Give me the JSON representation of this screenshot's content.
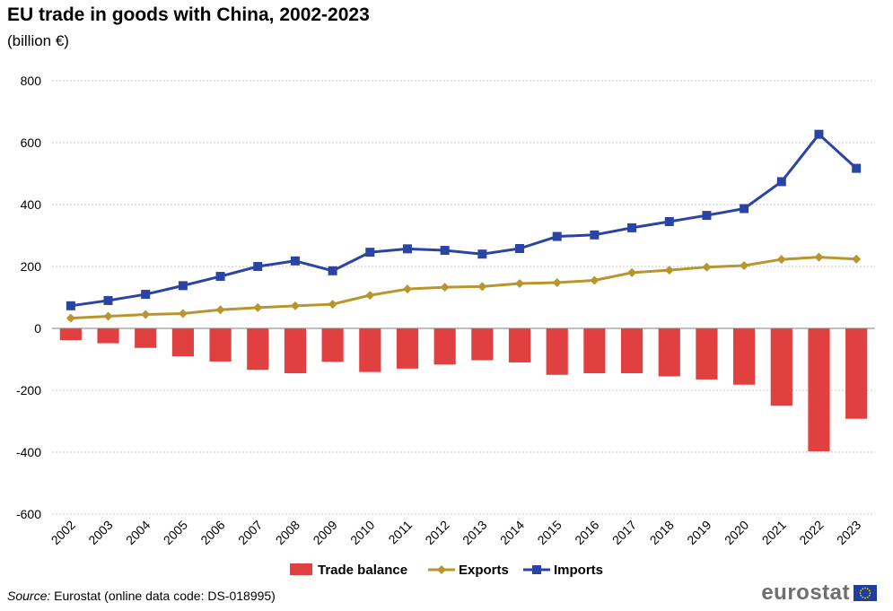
{
  "title": "EU trade in goods with China, 2002-2023",
  "subtitle": "(billion €)",
  "source_label": "Source:",
  "source_text": " Eurostat (online data code: DS-018995)",
  "logo_text": "eurostat",
  "colors": {
    "trade_balance": "#e04040",
    "exports": "#b8962e",
    "imports": "#2a44a6",
    "grid": "#c8c8c8",
    "logo_flag": "#1f3f9a",
    "logo_stars": "#f5d000"
  },
  "chart_data": {
    "type": "bar",
    "title": "EU trade in goods with China, 2002-2023",
    "subtitle": "(billion €)",
    "xlabel": "",
    "ylabel": "",
    "ylim": [
      -600,
      800
    ],
    "yticks": [
      800,
      600,
      400,
      200,
      0,
      -200,
      -400,
      -600
    ],
    "grid": true,
    "legend_position": "bottom",
    "categories": [
      "2002",
      "2003",
      "2004",
      "2005",
      "2006",
      "2007",
      "2008",
      "2009",
      "2010",
      "2011",
      "2012",
      "2013",
      "2014",
      "2015",
      "2016",
      "2017",
      "2018",
      "2019",
      "2020",
      "2021",
      "2022",
      "2023"
    ],
    "series": [
      {
        "name": "Trade balance",
        "type": "bar",
        "values": [
          -38,
          -48,
          -63,
          -90,
          -107,
          -134,
          -145,
          -108,
          -141,
          -130,
          -117,
          -103,
          -110,
          -150,
          -145,
          -145,
          -155,
          -165,
          -182,
          -250,
          -397,
          -292
        ]
      },
      {
        "name": "Exports",
        "type": "line",
        "marker": "diamond",
        "values": [
          33,
          39,
          45,
          48,
          60,
          67,
          73,
          78,
          107,
          127,
          133,
          135,
          145,
          148,
          155,
          180,
          188,
          198,
          203,
          223,
          230,
          224
        ]
      },
      {
        "name": "Imports",
        "type": "line",
        "marker": "square",
        "values": [
          73,
          90,
          110,
          138,
          168,
          200,
          218,
          186,
          246,
          257,
          252,
          240,
          258,
          297,
          302,
          325,
          345,
          365,
          387,
          474,
          627,
          517
        ]
      }
    ]
  }
}
